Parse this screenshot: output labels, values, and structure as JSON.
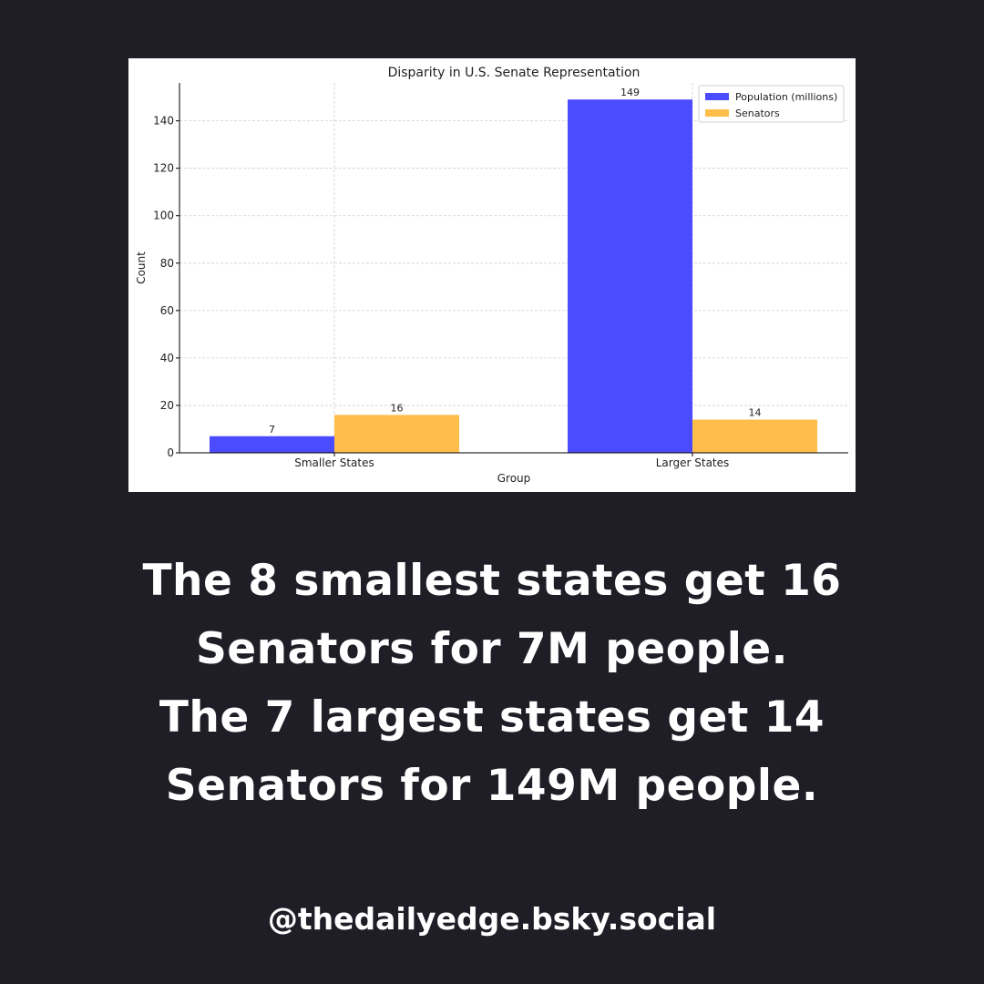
{
  "chart_data": {
    "type": "bar",
    "title": "Disparity in U.S. Senate Representation",
    "xlabel": "Group",
    "ylabel": "Count",
    "categories": [
      "Smaller States",
      "Larger States"
    ],
    "series": [
      {
        "name": "Population (millions)",
        "values": [
          7,
          149
        ],
        "color": "#4b4bff"
      },
      {
        "name": "Senators",
        "values": [
          16,
          14
        ],
        "color": "#ffbd4a"
      }
    ],
    "ylim": [
      0,
      156
    ],
    "yticks": [
      0,
      20,
      40,
      60,
      80,
      100,
      120,
      140
    ],
    "grid": true,
    "legend": "top-right"
  },
  "caption": {
    "lines": [
      "The 8 smallest states get 16",
      "Senators for 7M people.",
      "The 7 largest states get 14",
      "Senators for 149M people."
    ]
  },
  "handle": "@thedailyedge.bsky.social",
  "colors": {
    "background": "#1f1d26",
    "text": "#ffffff"
  }
}
